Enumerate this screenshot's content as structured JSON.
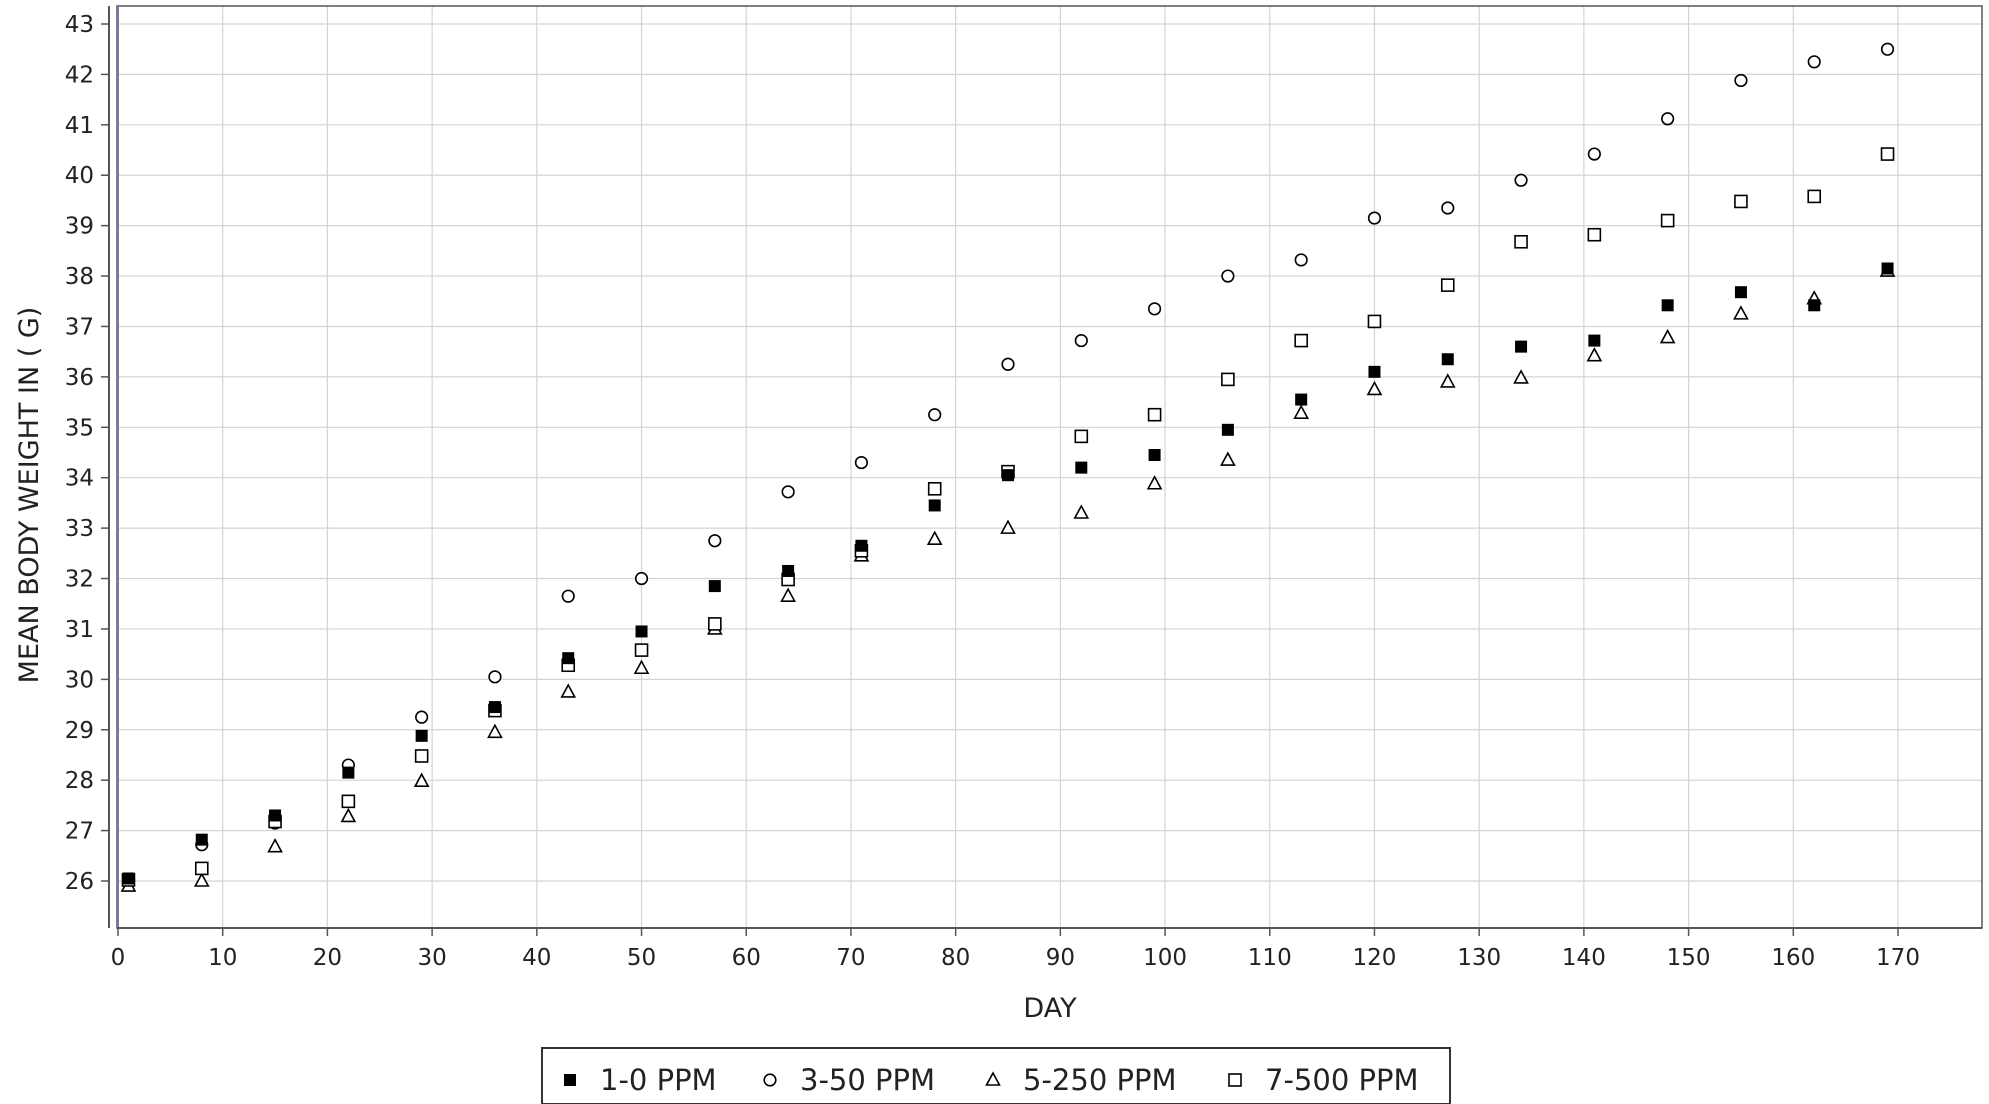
{
  "chart_data": {
    "type": "scatter",
    "xlabel": "DAY",
    "ylabel": "MEAN BODY WEIGHT IN ( G)",
    "xlim": [
      0,
      178
    ],
    "ylim": [
      25,
      43.3
    ],
    "xticks": [
      0,
      10,
      20,
      30,
      40,
      50,
      60,
      70,
      80,
      90,
      100,
      110,
      120,
      130,
      140,
      150,
      160,
      170
    ],
    "yticks": [
      26,
      27,
      28,
      29,
      30,
      31,
      32,
      33,
      34,
      35,
      36,
      37,
      38,
      39,
      40,
      41,
      42,
      43
    ],
    "grid": true,
    "legend_position": "bottom-center",
    "series": [
      {
        "name": "1-0 PPM",
        "marker": "filled-square",
        "color": "#000000",
        "x": [
          1,
          8,
          15,
          22,
          29,
          36,
          43,
          50,
          57,
          64,
          71,
          78,
          85,
          92,
          99,
          106,
          113,
          120,
          127,
          134,
          141,
          148,
          155,
          162,
          169
        ],
        "y": [
          26.05,
          26.82,
          27.3,
          28.15,
          28.88,
          29.45,
          30.42,
          30.95,
          31.85,
          32.15,
          32.65,
          33.45,
          34.05,
          34.2,
          34.45,
          34.95,
          35.55,
          36.1,
          36.35,
          36.6,
          36.72,
          37.42,
          37.68,
          37.42,
          38.15
        ]
      },
      {
        "name": "3-50 PPM",
        "marker": "open-circle",
        "color": "#000000",
        "x": [
          1,
          8,
          15,
          22,
          29,
          36,
          43,
          50,
          57,
          64,
          71,
          78,
          85,
          92,
          99,
          106,
          113,
          120,
          127,
          134,
          141,
          148,
          155,
          162,
          169
        ],
        "y": [
          26.0,
          26.72,
          27.15,
          28.3,
          29.25,
          30.05,
          31.65,
          32.0,
          32.75,
          33.72,
          34.3,
          35.25,
          36.25,
          36.72,
          37.35,
          38.0,
          38.32,
          39.15,
          39.35,
          39.9,
          40.42,
          41.12,
          41.88,
          42.25,
          42.5
        ]
      },
      {
        "name": "5-250 PPM",
        "marker": "open-triangle",
        "color": "#000000",
        "x": [
          1,
          8,
          15,
          22,
          29,
          36,
          43,
          50,
          57,
          64,
          71,
          78,
          85,
          92,
          99,
          106,
          113,
          120,
          127,
          134,
          141,
          148,
          155,
          162,
          169
        ],
        "y": [
          25.9,
          26.0,
          26.68,
          27.28,
          27.98,
          28.95,
          29.75,
          30.22,
          31.0,
          31.65,
          32.45,
          32.78,
          33.0,
          33.3,
          33.88,
          34.35,
          35.28,
          35.75,
          35.9,
          35.98,
          36.42,
          36.78,
          37.25,
          37.55,
          38.1
        ]
      },
      {
        "name": "7-500 PPM",
        "marker": "open-square",
        "color": "#000000",
        "x": [
          1,
          8,
          15,
          22,
          29,
          36,
          43,
          50,
          57,
          64,
          71,
          78,
          85,
          92,
          99,
          106,
          113,
          120,
          127,
          134,
          141,
          148,
          155,
          162,
          169
        ],
        "y": [
          26.02,
          26.25,
          27.18,
          27.58,
          28.48,
          29.38,
          30.28,
          30.58,
          31.1,
          31.98,
          32.55,
          33.78,
          34.12,
          34.82,
          35.25,
          35.95,
          36.72,
          37.1,
          37.82,
          38.68,
          38.82,
          39.1,
          39.48,
          39.58,
          40.42
        ]
      }
    ]
  }
}
